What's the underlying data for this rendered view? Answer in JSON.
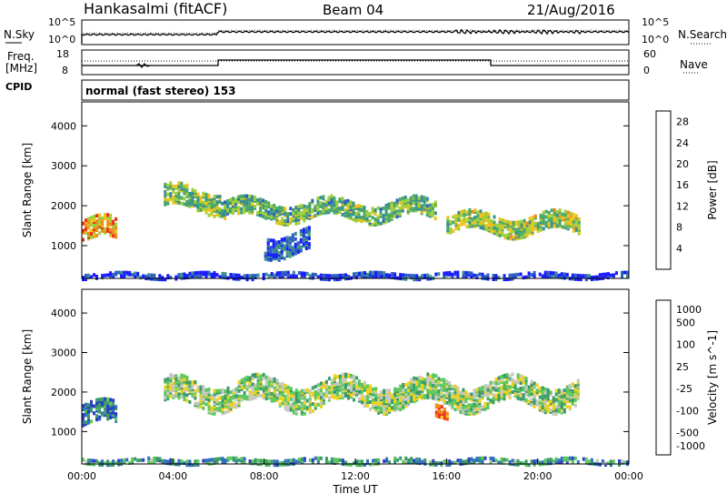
{
  "header": {
    "station": "Hankasalmi (fitACF)",
    "beam": "Beam 04",
    "date": "21/Aug/2016"
  },
  "summary": {
    "nsky_label": "N.Sky",
    "nsearch_label": "N.Search",
    "freq_label_line1": "Freq.",
    "freq_label_line2": "[MHz]",
    "nave_label": "Nave",
    "cpid_label": "CPID",
    "cpid_text": "normal (fast stereo) 153",
    "noise_ticks": [
      "10^5",
      "10^0"
    ],
    "noise_ticks_right": [
      "10^5",
      "10^0"
    ],
    "freq_ticks": [
      "18",
      "8"
    ],
    "nave_ticks": [
      "60",
      "0"
    ]
  },
  "chart_data": [
    {
      "type": "heatmap",
      "name": "power",
      "ylabel": "Slant Range [km]",
      "xlabel": "",
      "y_ticks": [
        "1000",
        "2000",
        "3000",
        "4000"
      ],
      "ylim": [
        180,
        4600
      ],
      "xlim": [
        0,
        24
      ],
      "colorbar_label": "Power [dB]",
      "colorbar_ticks": [
        "4",
        "8",
        "12",
        "16",
        "20",
        "24",
        "28"
      ],
      "colorbar_range": [
        0,
        30
      ],
      "colors": [
        "#1a1aff",
        "#2b5fbf",
        "#3a8f8f",
        "#4aa86a",
        "#9ecf3a",
        "#f2c21a",
        "#f08a1a",
        "#e8331a"
      ],
      "bands": [
        {
          "t0": 0.0,
          "t1": 1.5,
          "r_mid": 1400,
          "width": 500,
          "level": 0.75
        },
        {
          "t0": 3.6,
          "t1": 6.1,
          "r_mid": 2200,
          "width": 500,
          "level": 0.5
        },
        {
          "t0": 6.1,
          "t1": 15.5,
          "r_mid": 1950,
          "width": 450,
          "level": 0.45
        },
        {
          "t0": 8.0,
          "t1": 10.0,
          "r_mid": 1100,
          "width": 500,
          "level": 0.2
        },
        {
          "t0": 16.0,
          "t1": 21.8,
          "r_mid": 1600,
          "width": 450,
          "level": 0.55
        },
        {
          "t0": 0.0,
          "t1": 24.0,
          "r_mid": 300,
          "width": 120,
          "level": 0.1
        }
      ]
    },
    {
      "type": "heatmap",
      "name": "velocity",
      "ylabel": "Slant Range [km]",
      "xlabel": "Time UT",
      "x_ticks": [
        "00:00",
        "04:00",
        "08:00",
        "12:00",
        "16:00",
        "20:00",
        "00:00"
      ],
      "y_ticks": [
        "1000",
        "2000",
        "3000",
        "4000"
      ],
      "ylim": [
        180,
        4600
      ],
      "xlim": [
        0,
        24
      ],
      "colorbar_label": "Velocity [m s^-1]",
      "colorbar_ticks": [
        "1000",
        "500",
        "100",
        "25",
        "-25",
        "-100",
        "-500",
        "-1000"
      ],
      "colors": [
        "#2a3fbf",
        "#2f6fbf",
        "#3a9a6a",
        "#5cc85c",
        "#c8c8c0",
        "#f2d11a",
        "#f08a1a",
        "#e8331a"
      ],
      "bands": [
        {
          "t0": 0.0,
          "t1": 1.5,
          "r_mid": 1450,
          "width": 500,
          "level": 0.2
        },
        {
          "t0": 3.6,
          "t1": 21.8,
          "r_mid": 2000,
          "width": 600,
          "level": 0.5
        },
        {
          "t0": 15.5,
          "t1": 16.0,
          "r_mid": 1600,
          "width": 300,
          "level": 0.9
        },
        {
          "t0": 0.0,
          "t1": 24.0,
          "r_mid": 300,
          "width": 120,
          "level": 0.3
        }
      ]
    }
  ]
}
